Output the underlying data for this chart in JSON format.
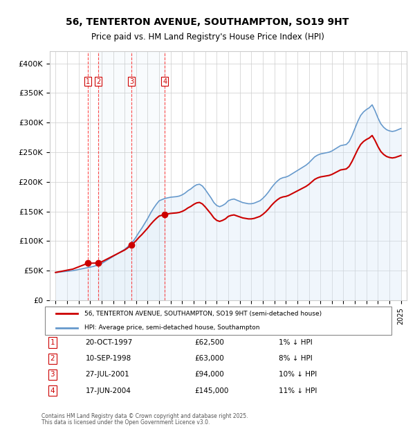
{
  "title_line1": "56, TENTERTON AVENUE, SOUTHAMPTON, SO19 9HT",
  "title_line2": "Price paid vs. HM Land Registry's House Price Index (HPI)",
  "ylabel": "",
  "xlabel": "",
  "background_color": "#ffffff",
  "plot_bg_color": "#ffffff",
  "grid_color": "#cccccc",
  "sale_color": "#cc0000",
  "hpi_color": "#6699cc",
  "hpi_fill_color": "#d0e4f7",
  "ylim": [
    0,
    420000
  ],
  "yticks": [
    0,
    50000,
    100000,
    150000,
    200000,
    250000,
    300000,
    350000,
    400000
  ],
  "ytick_labels": [
    "£0",
    "£50K",
    "£100K",
    "£150K",
    "£200K",
    "£250K",
    "£300K",
    "£350K",
    "£400K"
  ],
  "sale_transactions": [
    {
      "num": 1,
      "date_label": "20-OCT-1997",
      "x": 1997.8,
      "price": 62500,
      "pct": "1%"
    },
    {
      "num": 2,
      "date_label": "10-SEP-1998",
      "x": 1998.7,
      "price": 63000,
      "pct": "8%"
    },
    {
      "num": 3,
      "date_label": "27-JUL-2001",
      "x": 2001.6,
      "price": 94000,
      "pct": "10%"
    },
    {
      "num": 4,
      "date_label": "17-JUN-2004",
      "x": 2004.5,
      "price": 145000,
      "pct": "11%"
    }
  ],
  "legend_sale_label": "56, TENTERTON AVENUE, SOUTHAMPTON, SO19 9HT (semi-detached house)",
  "legend_hpi_label": "HPI: Average price, semi-detached house, Southampton",
  "footer_line1": "Contains HM Land Registry data © Crown copyright and database right 2025.",
  "footer_line2": "This data is licensed under the Open Government Licence v3.0.",
  "hpi_data": {
    "years": [
      1995,
      1995.25,
      1995.5,
      1995.75,
      1996,
      1996.25,
      1996.5,
      1996.75,
      1997,
      1997.25,
      1997.5,
      1997.75,
      1998,
      1998.25,
      1998.5,
      1998.75,
      1999,
      1999.25,
      1999.5,
      1999.75,
      2000,
      2000.25,
      2000.5,
      2000.75,
      2001,
      2001.25,
      2001.5,
      2001.75,
      2002,
      2002.25,
      2002.5,
      2002.75,
      2003,
      2003.25,
      2003.5,
      2003.75,
      2004,
      2004.25,
      2004.5,
      2004.75,
      2005,
      2005.25,
      2005.5,
      2005.75,
      2006,
      2006.25,
      2006.5,
      2006.75,
      2007,
      2007.25,
      2007.5,
      2007.75,
      2008,
      2008.25,
      2008.5,
      2008.75,
      2009,
      2009.25,
      2009.5,
      2009.75,
      2010,
      2010.25,
      2010.5,
      2010.75,
      2011,
      2011.25,
      2011.5,
      2011.75,
      2012,
      2012.25,
      2012.5,
      2012.75,
      2013,
      2013.25,
      2013.5,
      2013.75,
      2014,
      2014.25,
      2014.5,
      2014.75,
      2015,
      2015.25,
      2015.5,
      2015.75,
      2016,
      2016.25,
      2016.5,
      2016.75,
      2017,
      2017.25,
      2017.5,
      2017.75,
      2018,
      2018.25,
      2018.5,
      2018.75,
      2019,
      2019.25,
      2019.5,
      2019.75,
      2020,
      2020.25,
      2020.5,
      2020.75,
      2021,
      2021.25,
      2021.5,
      2021.75,
      2022,
      2022.25,
      2022.5,
      2022.75,
      2023,
      2023.25,
      2023.5,
      2023.75,
      2024,
      2024.25,
      2024.5,
      2024.75,
      2025
    ],
    "values": [
      47000,
      47500,
      48000,
      48500,
      49000,
      49500,
      50000,
      51000,
      52000,
      53000,
      54000,
      55000,
      56000,
      57000,
      58500,
      60000,
      62000,
      65000,
      68000,
      71000,
      74000,
      77000,
      80000,
      83000,
      86000,
      90000,
      95000,
      100000,
      107000,
      115000,
      122000,
      130000,
      138000,
      147000,
      155000,
      162000,
      168000,
      170000,
      172000,
      173000,
      174000,
      174500,
      175000,
      176000,
      178000,
      181000,
      185000,
      188000,
      192000,
      195000,
      196000,
      193000,
      187000,
      180000,
      173000,
      165000,
      160000,
      158000,
      160000,
      163000,
      168000,
      170000,
      171000,
      169000,
      167000,
      165000,
      164000,
      163000,
      163000,
      164000,
      166000,
      168000,
      172000,
      177000,
      183000,
      190000,
      196000,
      201000,
      205000,
      207000,
      208000,
      210000,
      213000,
      216000,
      219000,
      222000,
      225000,
      228000,
      232000,
      237000,
      242000,
      245000,
      247000,
      248000,
      249000,
      250000,
      252000,
      255000,
      258000,
      261000,
      262000,
      263000,
      268000,
      278000,
      290000,
      302000,
      312000,
      318000,
      322000,
      325000,
      330000,
      320000,
      308000,
      298000,
      292000,
      288000,
      286000,
      285000,
      286000,
      288000,
      290000
    ]
  },
  "sale_line_data": {
    "years": [
      1995,
      1997.8,
      1998.7,
      2001.6,
      2004.5,
      2025
    ],
    "values": [
      47000,
      62500,
      63000,
      94000,
      145000,
      270000
    ]
  }
}
